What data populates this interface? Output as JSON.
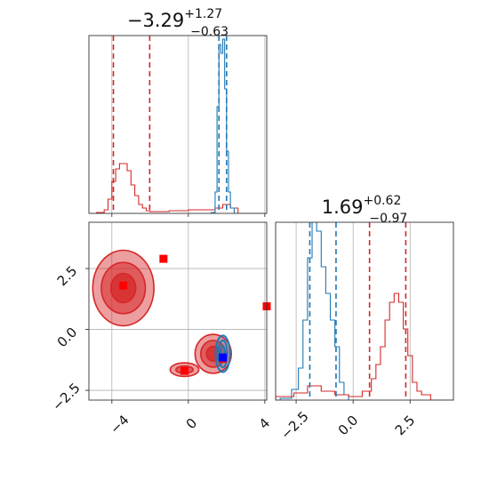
{
  "chart_data": [
    {
      "type": "histogram",
      "panel": "marginal-x",
      "title": "−3.29",
      "title_sup": "+1.27",
      "title_sub": "−0.63",
      "xlim": [
        -5.2,
        4.1
      ],
      "ylim": [
        0,
        1.0
      ],
      "grid": true,
      "gridlines_x": [
        -4,
        0,
        4
      ],
      "series": [
        {
          "color": "#d62728",
          "bin_edges": [
            -5.2,
            -4.8,
            -4.4,
            -4.2,
            -4.0,
            -3.8,
            -3.6,
            -3.4,
            -3.2,
            -3.0,
            -2.8,
            -2.6,
            -2.4,
            -2.2,
            -2.0,
            -1.0,
            0.0,
            1.0,
            1.4,
            1.8,
            2.2,
            2.6,
            4.1
          ],
          "counts": [
            0.0,
            0.005,
            0.02,
            0.08,
            0.18,
            0.25,
            0.28,
            0.28,
            0.24,
            0.16,
            0.1,
            0.05,
            0.03,
            0.015,
            0.01,
            0.015,
            0.02,
            0.02,
            0.03,
            0.05,
            0.03,
            0.0
          ]
        },
        {
          "color": "#1f77b4",
          "bin_edges": [
            1.2,
            1.4,
            1.5,
            1.6,
            1.7,
            1.8,
            1.9,
            2.0,
            2.1,
            2.2,
            2.4,
            2.6
          ],
          "counts": [
            0.005,
            0.12,
            0.6,
            0.95,
            0.9,
            0.98,
            0.7,
            0.35,
            0.12,
            0.03,
            0.0
          ]
        }
      ],
      "quantile_lines": [
        {
          "color": "#d62728",
          "x": -3.92
        },
        {
          "color": "#d62728",
          "x": -2.02
        },
        {
          "color": "#1f77b4",
          "x": 1.6
        },
        {
          "color": "#1f77b4",
          "x": 2.0
        }
      ]
    },
    {
      "type": "contour",
      "panel": "joint",
      "xlim": [
        -5.2,
        4.1
      ],
      "ylim": [
        -2.9,
        4.4
      ],
      "x_ticks": [
        "−4",
        "0",
        "4"
      ],
      "x_tick_values": [
        -4,
        0,
        4
      ],
      "y_ticks": [
        "−2.5",
        "0.0",
        "2.5"
      ],
      "y_tick_values": [
        -2.5,
        0.0,
        2.5
      ],
      "grid": true,
      "red_modes": [
        {
          "center": [
            -3.4,
            1.7
          ],
          "levels": [
            [
              1.6,
              1.55
            ],
            [
              1.15,
              1.05
            ],
            [
              0.65,
              0.6
            ]
          ]
        },
        {
          "center": [
            -0.2,
            -1.65
          ],
          "levels": [
            [
              0.75,
              0.28
            ],
            [
              0.45,
              0.15
            ]
          ]
        },
        {
          "center": [
            1.3,
            -1.0
          ],
          "levels": [
            [
              0.95,
              0.8
            ],
            [
              0.65,
              0.55
            ],
            [
              0.35,
              0.3
            ]
          ]
        }
      ],
      "blue_mode": {
        "center": [
          1.8,
          -1.0
        ],
        "levels": [
          [
            0.38,
            0.75
          ],
          [
            0.24,
            0.55
          ],
          [
            0.12,
            0.32
          ]
        ]
      },
      "markers": [
        {
          "color": "#ff0000",
          "x": -3.4,
          "y": 1.8
        },
        {
          "color": "#ff0000",
          "x": -1.3,
          "y": 2.9
        },
        {
          "color": "#ff0000",
          "x": -0.2,
          "y": -1.7
        },
        {
          "color": "#ff0000",
          "x": 1.8,
          "y": -1.2
        },
        {
          "color": "#ff0000",
          "x": 4.1,
          "y": 0.95
        },
        {
          "color": "#0000ff",
          "x": 1.8,
          "y": -1.15
        }
      ]
    },
    {
      "type": "histogram",
      "panel": "marginal-y",
      "title": "1.69",
      "title_sup": "+0.62",
      "title_sub": "−0.97",
      "xlim": [
        -3.4,
        4.4
      ],
      "ylim": [
        0,
        1.0
      ],
      "x_ticks": [
        "−2.5",
        "0.0",
        "2.5"
      ],
      "x_tick_values": [
        -2.5,
        0.0,
        2.5
      ],
      "grid": true,
      "series": [
        {
          "color": "#1f77b4",
          "bin_edges": [
            -3.2,
            -2.7,
            -2.4,
            -2.2,
            -2.0,
            -1.8,
            -1.6,
            -1.4,
            -1.2,
            -1.0,
            -0.8,
            -0.6,
            -0.4,
            -0.2,
            0.2
          ],
          "counts": [
            0.01,
            0.06,
            0.18,
            0.45,
            0.8,
            1.0,
            0.95,
            0.75,
            0.6,
            0.45,
            0.3,
            0.1,
            0.03,
            0.0
          ]
        },
        {
          "color": "#d62728",
          "bin_edges": [
            -3.4,
            -2.6,
            -2.0,
            -1.4,
            -0.8,
            -0.2,
            0.4,
            0.8,
            1.0,
            1.2,
            1.4,
            1.6,
            1.8,
            2.0,
            2.2,
            2.4,
            2.6,
            2.8,
            3.0,
            3.4,
            4.4
          ],
          "counts": [
            0.02,
            0.04,
            0.08,
            0.05,
            0.03,
            0.02,
            0.05,
            0.12,
            0.2,
            0.3,
            0.45,
            0.55,
            0.6,
            0.55,
            0.4,
            0.25,
            0.1,
            0.05,
            0.03,
            0.0
          ]
        }
      ],
      "quantile_lines": [
        {
          "color": "#1f77b4",
          "x": -1.9
        },
        {
          "color": "#1f77b4",
          "x": -0.75
        },
        {
          "color": "#d62728",
          "x": 0.72
        },
        {
          "color": "#d62728",
          "x": 2.31
        }
      ]
    }
  ]
}
